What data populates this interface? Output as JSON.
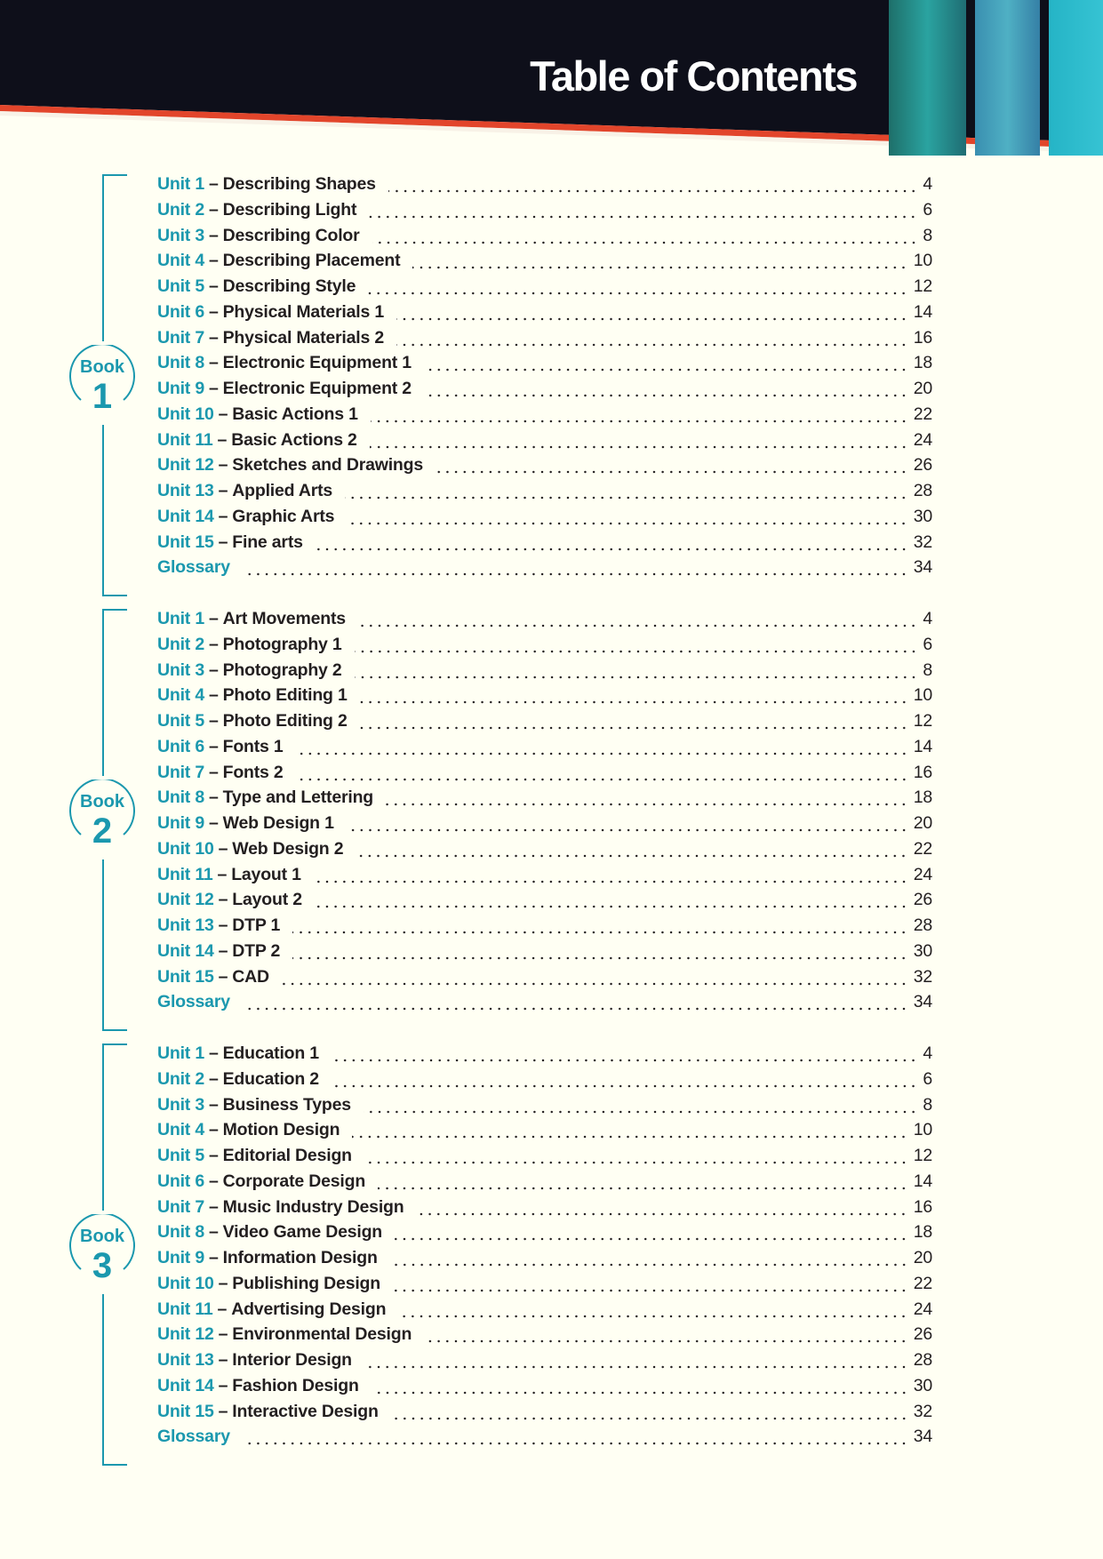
{
  "header": {
    "title": "Table of Contents"
  },
  "colors": {
    "accent": "#1b98ae",
    "header_bg": "#0e0f1a",
    "stripe": "#e2452b",
    "page_bg": "#fffff3"
  },
  "books": [
    {
      "label": "Book",
      "number": "1",
      "entries": [
        {
          "unit": "Unit 1",
          "title": "Describing Shapes",
          "page": "4"
        },
        {
          "unit": "Unit 2",
          "title": "Describing Light",
          "page": "6"
        },
        {
          "unit": "Unit 3",
          "title": "Describing Color",
          "page": "8"
        },
        {
          "unit": "Unit 4",
          "title": "Describing Placement",
          "page": "10"
        },
        {
          "unit": "Unit 5",
          "title": "Describing Style",
          "page": "12"
        },
        {
          "unit": "Unit 6",
          "title": "Physical Materials 1",
          "page": "14"
        },
        {
          "unit": "Unit 7",
          "title": "Physical Materials 2",
          "page": "16"
        },
        {
          "unit": "Unit 8",
          "title": "Electronic Equipment 1",
          "page": "18"
        },
        {
          "unit": "Unit 9",
          "title": "Electronic Equipment 2",
          "page": "20"
        },
        {
          "unit": "Unit 10",
          "title": "Basic Actions 1",
          "page": "22"
        },
        {
          "unit": "Unit 11",
          "title": "Basic Actions 2",
          "page": "24"
        },
        {
          "unit": "Unit 12",
          "title": "Sketches and Drawings",
          "page": "26"
        },
        {
          "unit": "Unit 13",
          "title": "Applied Arts",
          "page": "28"
        },
        {
          "unit": "Unit 14",
          "title": "Graphic Arts",
          "page": "30"
        },
        {
          "unit": "Unit 15",
          "title": "Fine arts",
          "page": "32"
        },
        {
          "unit": "Glossary",
          "title": "",
          "page": "34"
        }
      ]
    },
    {
      "label": "Book",
      "number": "2",
      "entries": [
        {
          "unit": "Unit 1",
          "title": "Art Movements",
          "page": "4"
        },
        {
          "unit": "Unit 2",
          "title": "Photography 1",
          "page": "6"
        },
        {
          "unit": "Unit 3",
          "title": "Photography 2",
          "page": "8"
        },
        {
          "unit": "Unit 4",
          "title": "Photo Editing 1",
          "page": "10"
        },
        {
          "unit": "Unit 5",
          "title": "Photo Editing 2",
          "page": "12"
        },
        {
          "unit": "Unit 6",
          "title": "Fonts 1",
          "page": "14"
        },
        {
          "unit": "Unit 7",
          "title": "Fonts 2",
          "page": "16"
        },
        {
          "unit": "Unit 8",
          "title": "Type and Lettering",
          "page": "18"
        },
        {
          "unit": "Unit 9",
          "title": "Web Design 1",
          "page": "20"
        },
        {
          "unit": "Unit 10",
          "title": "Web Design 2",
          "page": "22"
        },
        {
          "unit": "Unit 11",
          "title": "Layout 1",
          "page": "24"
        },
        {
          "unit": "Unit 12",
          "title": "Layout 2",
          "page": "26"
        },
        {
          "unit": "Unit 13",
          "title": "DTP 1",
          "page": "28"
        },
        {
          "unit": "Unit 14",
          "title": "DTP 2",
          "page": "30"
        },
        {
          "unit": "Unit 15",
          "title": "CAD",
          "page": "32"
        },
        {
          "unit": "Glossary",
          "title": "",
          "page": "34"
        }
      ]
    },
    {
      "label": "Book",
      "number": "3",
      "entries": [
        {
          "unit": "Unit 1",
          "title": "Education 1",
          "page": "4"
        },
        {
          "unit": "Unit 2",
          "title": "Education 2",
          "page": "6"
        },
        {
          "unit": "Unit 3",
          "title": "Business Types",
          "page": "8"
        },
        {
          "unit": "Unit 4",
          "title": "Motion Design",
          "page": "10"
        },
        {
          "unit": "Unit 5",
          "title": "Editorial Design",
          "page": "12"
        },
        {
          "unit": "Unit 6",
          "title": "Corporate Design",
          "page": "14"
        },
        {
          "unit": "Unit 7",
          "title": "Music Industry Design",
          "page": "16"
        },
        {
          "unit": "Unit 8",
          "title": "Video Game Design",
          "page": "18"
        },
        {
          "unit": "Unit 9",
          "title": "Information Design",
          "page": "20"
        },
        {
          "unit": "Unit 10",
          "title": "Publishing Design",
          "page": "22"
        },
        {
          "unit": "Unit 11",
          "title": "Advertising Design",
          "page": "24"
        },
        {
          "unit": "Unit 12",
          "title": "Environmental Design",
          "page": "26"
        },
        {
          "unit": "Unit 13",
          "title": "Interior Design",
          "page": "28"
        },
        {
          "unit": "Unit 14",
          "title": "Fashion Design",
          "page": "30"
        },
        {
          "unit": "Unit 15",
          "title": "Interactive Design",
          "page": "32"
        },
        {
          "unit": "Glossary",
          "title": "",
          "page": "34"
        }
      ]
    }
  ]
}
